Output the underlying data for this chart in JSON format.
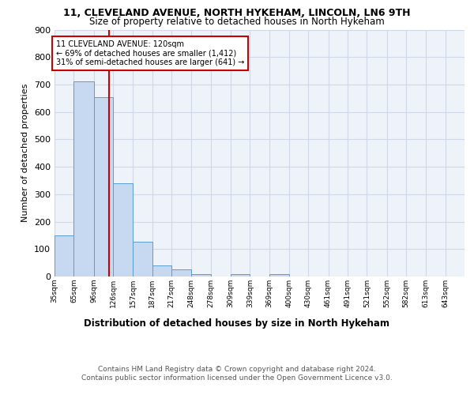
{
  "title1": "11, CLEVELAND AVENUE, NORTH HYKEHAM, LINCOLN, LN6 9TH",
  "title2": "Size of property relative to detached houses in North Hykeham",
  "xlabel": "Distribution of detached houses by size in North Hykeham",
  "ylabel": "Number of detached properties",
  "bin_labels": [
    "35sqm",
    "65sqm",
    "96sqm",
    "126sqm",
    "157sqm",
    "187sqm",
    "217sqm",
    "248sqm",
    "278sqm",
    "309sqm",
    "339sqm",
    "369sqm",
    "400sqm",
    "430sqm",
    "461sqm",
    "491sqm",
    "521sqm",
    "552sqm",
    "582sqm",
    "613sqm",
    "643sqm"
  ],
  "bin_edges": [
    35,
    65,
    96,
    126,
    157,
    187,
    217,
    248,
    278,
    309,
    339,
    369,
    400,
    430,
    461,
    491,
    521,
    552,
    582,
    613,
    643
  ],
  "bar_values": [
    150,
    710,
    655,
    340,
    128,
    40,
    27,
    10,
    0,
    8,
    0,
    8,
    0,
    0,
    0,
    0,
    0,
    0,
    0,
    0
  ],
  "bar_color": "#c6d9f0",
  "bar_edge_color": "#5b9bd5",
  "subject_sqm": 120,
  "subject_label": "11 CLEVELAND AVENUE: 120sqm",
  "annotation_line1": "← 69% of detached houses are smaller (1,412)",
  "annotation_line2": "31% of semi-detached houses are larger (641) →",
  "red_line_color": "#cc0000",
  "annotation_box_color": "#ffffff",
  "annotation_box_edge": "#cc0000",
  "grid_color": "#d0d8e8",
  "background_color": "#eef2f9",
  "ylim": [
    0,
    900
  ],
  "yticks": [
    0,
    100,
    200,
    300,
    400,
    500,
    600,
    700,
    800,
    900
  ],
  "footer1": "Contains HM Land Registry data © Crown copyright and database right 2024.",
  "footer2": "Contains public sector information licensed under the Open Government Licence v3.0."
}
